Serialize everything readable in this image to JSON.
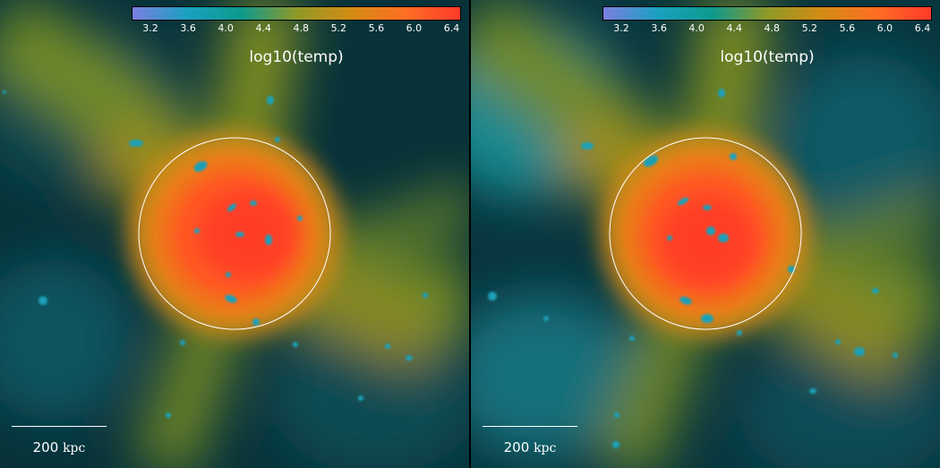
{
  "colorbar": {
    "label": "log10(temp)",
    "ticks": [
      "3.2",
      "3.6",
      "4.0",
      "4.4",
      "4.8",
      "5.2",
      "5.6",
      "6.0",
      "6.4"
    ],
    "min": 3.0,
    "max": 6.5,
    "colors": [
      "#7b7fe0",
      "#1aa0c0",
      "#0e9a8c",
      "#8f9a28",
      "#d28c14",
      "#ff6e24",
      "#ff3a2a"
    ]
  },
  "scale_bar": {
    "value": "200",
    "unit": "kpc"
  },
  "colors": {
    "background": "#07323a",
    "filament": "#8c8c1c",
    "halo": "#ff4a26",
    "cold_clumps": "#1a9cb8",
    "virial_circle": "#ffffff"
  }
}
